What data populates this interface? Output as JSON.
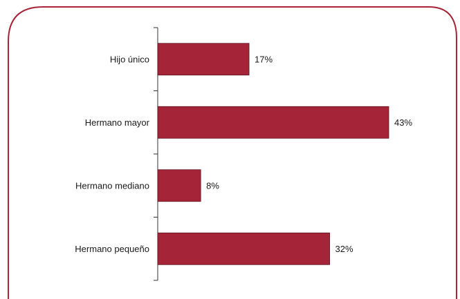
{
  "chart_data": {
    "type": "bar",
    "orientation": "horizontal",
    "categories": [
      "Hijo único",
      "Hermano mayor",
      "Hermano mediano",
      "Hermano pequeño"
    ],
    "values": [
      17,
      43,
      8,
      32
    ],
    "value_labels": [
      "17%",
      "43%",
      "8%",
      "32%"
    ],
    "unit": "%",
    "xlim": [
      0,
      55
    ],
    "grid": false,
    "legend": "none"
  },
  "colors": {
    "bar": "#a52438",
    "bar_stroke": "#5a1420",
    "frame": "#a52438",
    "axis": "#333333"
  }
}
